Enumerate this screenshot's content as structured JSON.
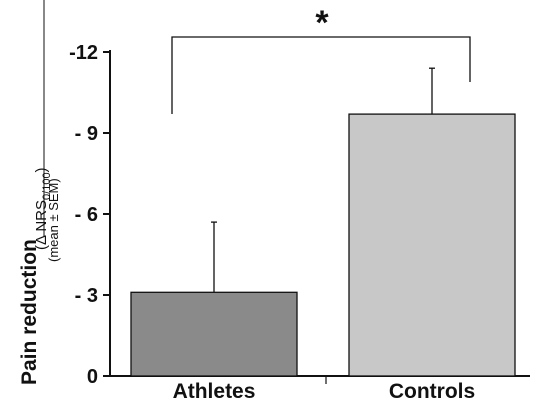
{
  "chart_data": {
    "type": "bar",
    "categories": [
      "Athletes",
      "Controls"
    ],
    "values": [
      -3.1,
      -9.7
    ],
    "errors": [
      2.6,
      1.7
    ],
    "bar_colors": [
      "#8a8a8a",
      "#c8c8c8"
    ],
    "ylim": [
      0,
      -12
    ],
    "yticks": [
      0,
      -3,
      -6,
      -9,
      -12
    ],
    "ytick_labels": [
      "0",
      "- 3",
      "- 6",
      "- 9",
      "-12"
    ],
    "ylabel": "Pain reduction",
    "ylabel_sub": "(mean ± SEM)",
    "ylabel_unit_prefix": "(Δ NRS",
    "ylabel_unit_subscript": "0/100",
    "ylabel_unit_suffix": ")",
    "significance_marker": "*"
  }
}
